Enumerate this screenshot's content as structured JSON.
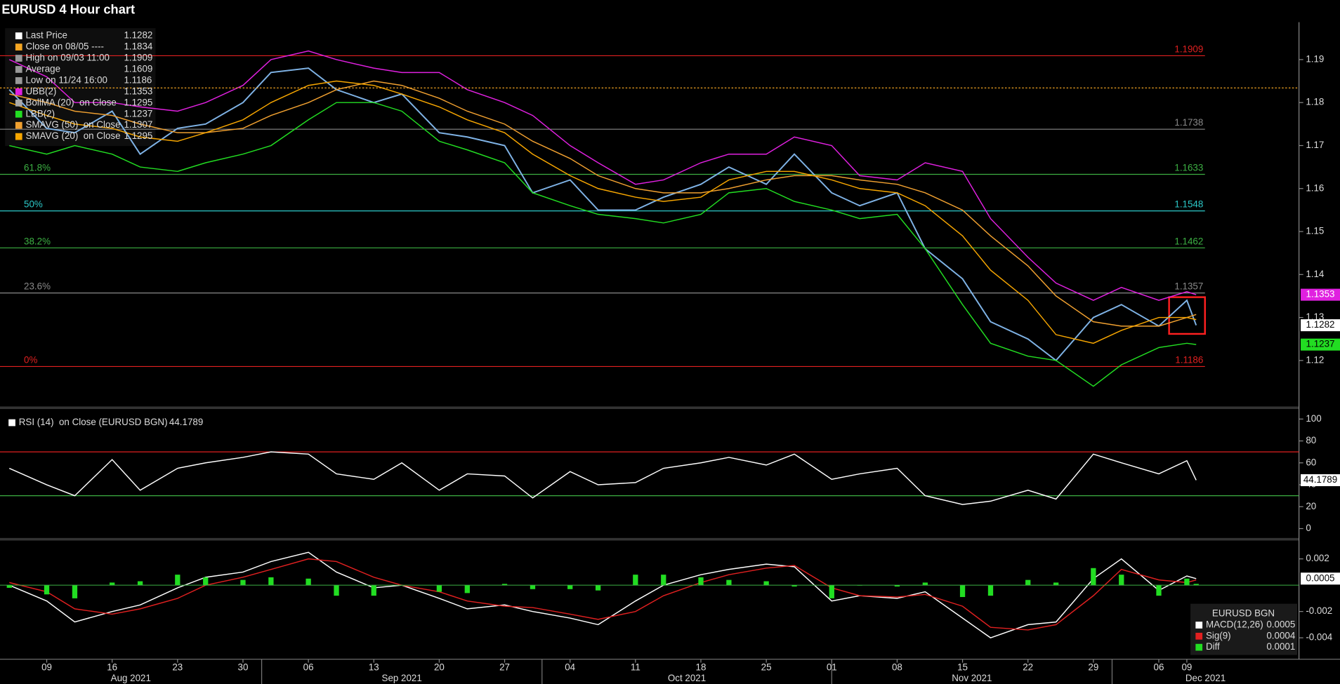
{
  "title": "EURUSD 4 Hour chart",
  "chart_data": [
    {
      "type": "line",
      "x": [
        "2021-08-05",
        "2021-08-09",
        "2021-08-12",
        "2021-08-16",
        "2021-08-19",
        "2021-08-23",
        "2021-08-26",
        "2021-08-30",
        "2021-09-02",
        "2021-09-06",
        "2021-09-09",
        "2021-09-13",
        "2021-09-16",
        "2021-09-20",
        "2021-09-23",
        "2021-09-27",
        "2021-09-30",
        "2021-10-04",
        "2021-10-07",
        "2021-10-11",
        "2021-10-14",
        "2021-10-18",
        "2021-10-21",
        "2021-10-25",
        "2021-10-28",
        "2021-11-01",
        "2021-11-04",
        "2021-11-08",
        "2021-11-11",
        "2021-11-15",
        "2021-11-18",
        "2021-11-22",
        "2021-11-25",
        "2021-11-29",
        "2021-12-02",
        "2021-12-06",
        "2021-12-09",
        "2021-12-10"
      ],
      "xlim": [
        "2021-08-04",
        "2021-12-21"
      ],
      "ylim": [
        1.1095,
        1.1983
      ],
      "yticks": [
        1.12,
        1.13,
        1.14,
        1.15,
        1.16,
        1.17,
        1.18,
        1.19
      ],
      "series": [
        {
          "name": "Last Price",
          "color": "#ffffff",
          "line_color": "#7fb3e6",
          "values": [
            1.183,
            1.174,
            1.173,
            1.178,
            1.168,
            1.174,
            1.175,
            1.18,
            1.187,
            1.188,
            1.183,
            1.18,
            1.182,
            1.173,
            1.172,
            1.17,
            1.159,
            1.162,
            1.155,
            1.155,
            1.158,
            1.161,
            1.165,
            1.161,
            1.168,
            1.159,
            1.156,
            1.159,
            1.146,
            1.139,
            1.129,
            1.125,
            1.12,
            1.13,
            1.133,
            1.128,
            1.134,
            1.1282
          ]
        },
        {
          "name": "UBB(2)",
          "color": "#e020e0",
          "values": [
            1.19,
            1.186,
            1.18,
            1.18,
            1.179,
            1.178,
            1.18,
            1.184,
            1.19,
            1.192,
            1.19,
            1.188,
            1.187,
            1.187,
            1.183,
            1.18,
            1.177,
            1.17,
            1.166,
            1.161,
            1.162,
            1.166,
            1.168,
            1.168,
            1.172,
            1.17,
            1.163,
            1.162,
            1.166,
            1.164,
            1.153,
            1.144,
            1.138,
            1.134,
            1.137,
            1.134,
            1.136,
            1.1353
          ]
        },
        {
          "name": "LBB(2)",
          "color": "#22dd22",
          "values": [
            1.17,
            1.168,
            1.17,
            1.168,
            1.165,
            1.164,
            1.166,
            1.168,
            1.17,
            1.176,
            1.18,
            1.18,
            1.178,
            1.171,
            1.169,
            1.166,
            1.159,
            1.156,
            1.154,
            1.153,
            1.152,
            1.154,
            1.159,
            1.16,
            1.157,
            1.155,
            1.153,
            1.154,
            1.146,
            1.133,
            1.124,
            1.121,
            1.12,
            1.114,
            1.119,
            1.123,
            1.124,
            1.1237
          ]
        },
        {
          "name": "SMAVG (50)  on Close",
          "color": "#f0a030",
          "values": [
            1.182,
            1.18,
            1.178,
            1.177,
            1.175,
            1.173,
            1.173,
            1.174,
            1.177,
            1.18,
            1.183,
            1.185,
            1.184,
            1.181,
            1.178,
            1.175,
            1.171,
            1.167,
            1.163,
            1.16,
            1.159,
            1.159,
            1.16,
            1.162,
            1.163,
            1.163,
            1.162,
            1.161,
            1.159,
            1.155,
            1.149,
            1.142,
            1.135,
            1.129,
            1.128,
            1.128,
            1.13,
            1.1307
          ]
        },
        {
          "name": "SMAVG (20)  on Close",
          "color": "#f7a600",
          "values": [
            1.18,
            1.177,
            1.175,
            1.174,
            1.172,
            1.171,
            1.173,
            1.176,
            1.18,
            1.184,
            1.185,
            1.184,
            1.182,
            1.179,
            1.176,
            1.173,
            1.168,
            1.163,
            1.16,
            1.158,
            1.157,
            1.158,
            1.162,
            1.164,
            1.164,
            1.162,
            1.16,
            1.159,
            1.156,
            1.149,
            1.141,
            1.134,
            1.126,
            1.124,
            1.127,
            1.13,
            1.13,
            1.1295
          ]
        }
      ],
      "stats": [
        {
          "name": "Close on 08/05 ----",
          "color": "#f5a623",
          "value": 1.1834
        },
        {
          "name": "High on 09/03 11:00",
          "color": "#999999",
          "value": 1.1909
        },
        {
          "name": "Average",
          "color": "#999999",
          "value": 1.1609
        },
        {
          "name": "Low on 11/24 16:00",
          "color": "#999999",
          "value": 1.1186
        },
        {
          "name": "BollMA (20)  on Close",
          "color": "#aaaaaa",
          "value": 1.1295
        }
      ],
      "levels": [
        {
          "value": 1.1909,
          "color": "#e02020"
        },
        {
          "value": 1.1738,
          "color": "#888888"
        },
        {
          "value": 1.1633,
          "label": "61.8%",
          "color": "#3cb043"
        },
        {
          "value": 1.1548,
          "label": "50%",
          "color": "#2cc8c8"
        },
        {
          "value": 1.1462,
          "label": "38.2%",
          "color": "#3cb043"
        },
        {
          "value": 1.1357,
          "label": "23.6%",
          "color": "#888888"
        },
        {
          "value": 1.1186,
          "label": "0%",
          "color": "#e02020"
        }
      ]
    },
    {
      "type": "line",
      "title": "RSI (14)  on Close (EURUSD BGN)",
      "x": [
        "2021-08-05",
        "2021-08-09",
        "2021-08-12",
        "2021-08-16",
        "2021-08-19",
        "2021-08-23",
        "2021-08-26",
        "2021-08-30",
        "2021-09-02",
        "2021-09-06",
        "2021-09-09",
        "2021-09-13",
        "2021-09-16",
        "2021-09-20",
        "2021-09-23",
        "2021-09-27",
        "2021-09-30",
        "2021-10-04",
        "2021-10-07",
        "2021-10-11",
        "2021-10-14",
        "2021-10-18",
        "2021-10-21",
        "2021-10-25",
        "2021-10-28",
        "2021-11-01",
        "2021-11-04",
        "2021-11-08",
        "2021-11-11",
        "2021-11-15",
        "2021-11-18",
        "2021-11-22",
        "2021-11-25",
        "2021-11-29",
        "2021-12-02",
        "2021-12-06",
        "2021-12-09",
        "2021-12-10"
      ],
      "xlim": [
        "2021-08-04",
        "2021-12-21"
      ],
      "ylim": [
        -7,
        106
      ],
      "yticks": [
        0,
        20,
        40,
        60,
        80,
        100
      ],
      "series": [
        {
          "color": "#ffffff",
          "values": [
            55,
            40,
            30,
            63,
            35,
            55,
            60,
            65,
            70,
            68,
            50,
            45,
            60,
            35,
            50,
            48,
            28,
            52,
            40,
            42,
            55,
            60,
            65,
            58,
            68,
            45,
            50,
            55,
            30,
            22,
            25,
            35,
            27,
            68,
            60,
            50,
            62,
            44.1789
          ]
        }
      ],
      "levels": [
        {
          "value": 70,
          "color": "#e02020"
        },
        {
          "value": 30,
          "color": "#3cb043"
        }
      ]
    },
    {
      "type": "line",
      "legend_title": "EURUSD BGN",
      "x": [
        "2021-08-05",
        "2021-08-09",
        "2021-08-12",
        "2021-08-16",
        "2021-08-19",
        "2021-08-23",
        "2021-08-26",
        "2021-08-30",
        "2021-09-02",
        "2021-09-06",
        "2021-09-09",
        "2021-09-13",
        "2021-09-16",
        "2021-09-20",
        "2021-09-23",
        "2021-09-27",
        "2021-09-30",
        "2021-10-04",
        "2021-10-07",
        "2021-10-11",
        "2021-10-14",
        "2021-10-18",
        "2021-10-21",
        "2021-10-25",
        "2021-10-28",
        "2021-11-01",
        "2021-11-04",
        "2021-11-08",
        "2021-11-11",
        "2021-11-15",
        "2021-11-18",
        "2021-11-22",
        "2021-11-25",
        "2021-11-29",
        "2021-12-02",
        "2021-12-06",
        "2021-12-09",
        "2021-12-10"
      ],
      "xlim": [
        "2021-08-04",
        "2021-12-21"
      ],
      "xticks": [
        {
          "value": "2021-08-09",
          "label": "09"
        },
        {
          "value": "2021-08-16",
          "label": "16"
        },
        {
          "value": "2021-08-23",
          "label": "23"
        },
        {
          "value": "2021-08-30",
          "label": "30"
        },
        {
          "value": "2021-09-06",
          "label": "06"
        },
        {
          "value": "2021-09-13",
          "label": "13"
        },
        {
          "value": "2021-09-20",
          "label": "20"
        },
        {
          "value": "2021-09-27",
          "label": "27"
        },
        {
          "value": "2021-10-04",
          "label": "04"
        },
        {
          "value": "2021-10-11",
          "label": "11"
        },
        {
          "value": "2021-10-18",
          "label": "18"
        },
        {
          "value": "2021-10-25",
          "label": "25"
        },
        {
          "value": "2021-11-01",
          "label": "01"
        },
        {
          "value": "2021-11-08",
          "label": "08"
        },
        {
          "value": "2021-11-15",
          "label": "15"
        },
        {
          "value": "2021-11-22",
          "label": "22"
        },
        {
          "value": "2021-11-29",
          "label": "29"
        },
        {
          "value": "2021-12-06",
          "label": "06"
        },
        {
          "value": "2021-12-09",
          "label": "09"
        }
      ],
      "xmonths": [
        {
          "value": "2021-08",
          "label": "Aug 2021"
        },
        {
          "value": "2021-09",
          "label": "Sep 2021"
        },
        {
          "value": "2021-10",
          "label": "Oct 2021"
        },
        {
          "value": "2021-11",
          "label": "Nov 2021"
        },
        {
          "value": "2021-12",
          "label": "Dec 2021"
        }
      ],
      "ylim": [
        -0.0055,
        0.0032
      ],
      "yticks": [
        0.002,
        -0.002,
        -0.004
      ],
      "series": [
        {
          "name": "MACD(12,26)",
          "color": "#ffffff",
          "values": [
            0.0,
            -0.0012,
            -0.0028,
            -0.002,
            -0.0015,
            -0.0002,
            0.0006,
            0.001,
            0.0018,
            0.0025,
            0.001,
            -0.0002,
            0.0,
            -0.001,
            -0.0018,
            -0.0015,
            -0.002,
            -0.0025,
            -0.003,
            -0.0012,
            0.0,
            0.0008,
            0.0012,
            0.0016,
            0.0014,
            -0.0012,
            -0.0008,
            -0.001,
            -0.0005,
            -0.0025,
            -0.004,
            -0.003,
            -0.0028,
            0.0005,
            0.002,
            -0.0004,
            0.0007,
            0.0005
          ]
        },
        {
          "name": "Sig(9)",
          "color": "#e02020",
          "values": [
            0.0002,
            -0.0005,
            -0.0018,
            -0.0022,
            -0.0018,
            -0.001,
            0.0,
            0.0006,
            0.0012,
            0.002,
            0.0018,
            0.0006,
            0.0,
            -0.0005,
            -0.0012,
            -0.0016,
            -0.0017,
            -0.0022,
            -0.0026,
            -0.002,
            -0.0008,
            0.0002,
            0.0008,
            0.0013,
            0.0015,
            -0.0002,
            -0.0008,
            -0.0009,
            -0.0007,
            -0.0016,
            -0.0032,
            -0.0034,
            -0.003,
            -0.0008,
            0.0012,
            0.0004,
            0.0002,
            0.0004
          ]
        },
        {
          "name": "Diff",
          "color": "#22dd22",
          "type": "bar",
          "values": [
            -0.0002,
            -0.0007,
            -0.001,
            0.0002,
            0.0003,
            0.0008,
            0.0006,
            0.0004,
            0.0006,
            0.0005,
            -0.0008,
            -0.0008,
            0.0,
            -0.0005,
            -0.0006,
            0.0001,
            -0.0003,
            -0.0003,
            -0.0004,
            0.0008,
            0.0008,
            0.0006,
            0.0004,
            0.0003,
            -0.0001,
            -0.001,
            0.0,
            -0.0001,
            0.0002,
            -0.0009,
            -0.0008,
            0.0004,
            0.0002,
            0.0013,
            0.0008,
            -0.0008,
            0.0005,
            0.0001
          ]
        }
      ]
    }
  ]
}
